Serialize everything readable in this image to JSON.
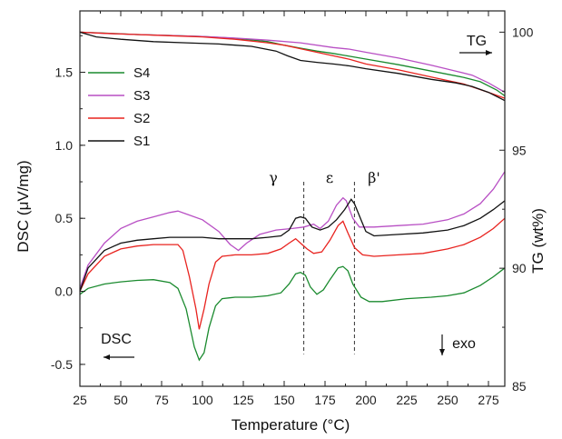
{
  "chart_data": {
    "type": "line",
    "xlabel": "Temperature (°C)",
    "ylabel_left": "DSC (μV/mg)",
    "ylabel_right": "TG (wt%)",
    "xlim": [
      25,
      285
    ],
    "ylim_left": [
      -0.65,
      1.92
    ],
    "ylim_right": [
      85,
      100.9
    ],
    "x_ticks": [
      25,
      50,
      75,
      100,
      125,
      150,
      175,
      200,
      225,
      250,
      275
    ],
    "y_left_ticks": [
      -0.5,
      0.0,
      0.5,
      1.0,
      1.5
    ],
    "y_left_tick_labels": [
      "-0.5",
      "0.0",
      "0.5",
      "1.0",
      "1.5"
    ],
    "y_right_ticks": [
      85,
      90,
      95,
      100
    ],
    "legend": {
      "placement": "top-left",
      "entries": [
        "S4",
        "S3",
        "S2",
        "S1"
      ]
    },
    "colors": {
      "S4": "#1a8a2e",
      "S3": "#b84fc4",
      "S2": "#e8231f",
      "S1": "#111111"
    },
    "annotations": {
      "tg_label": "TG",
      "dsc_label": "DSC",
      "exo_label": "exo",
      "gamma": "γ",
      "epsilon": "ε",
      "beta": "β'"
    },
    "vlines_x": [
      162,
      193
    ],
    "dsc_series": [
      {
        "name": "S4",
        "points": [
          [
            25,
            -0.02
          ],
          [
            30,
            0.02
          ],
          [
            40,
            0.05
          ],
          [
            50,
            0.065
          ],
          [
            60,
            0.075
          ],
          [
            70,
            0.08
          ],
          [
            80,
            0.06
          ],
          [
            85,
            0.02
          ],
          [
            90,
            -0.12
          ],
          [
            95,
            -0.38
          ],
          [
            98,
            -0.47
          ],
          [
            101,
            -0.42
          ],
          [
            104,
            -0.25
          ],
          [
            108,
            -0.1
          ],
          [
            112,
            -0.05
          ],
          [
            120,
            -0.04
          ],
          [
            130,
            -0.04
          ],
          [
            140,
            -0.03
          ],
          [
            148,
            -0.01
          ],
          [
            153,
            0.05
          ],
          [
            157,
            0.12
          ],
          [
            160,
            0.13
          ],
          [
            163,
            0.11
          ],
          [
            166,
            0.03
          ],
          [
            170,
            -0.02
          ],
          [
            174,
            0.01
          ],
          [
            178,
            0.08
          ],
          [
            183,
            0.16
          ],
          [
            186,
            0.17
          ],
          [
            189,
            0.14
          ],
          [
            192,
            0.05
          ],
          [
            197,
            -0.04
          ],
          [
            202,
            -0.07
          ],
          [
            210,
            -0.07
          ],
          [
            225,
            -0.05
          ],
          [
            240,
            -0.04
          ],
          [
            250,
            -0.03
          ],
          [
            260,
            -0.01
          ],
          [
            270,
            0.04
          ],
          [
            278,
            0.1
          ],
          [
            285,
            0.16
          ]
        ]
      },
      {
        "name": "S3",
        "points": [
          [
            25,
            0.02
          ],
          [
            30,
            0.18
          ],
          [
            40,
            0.33
          ],
          [
            50,
            0.43
          ],
          [
            60,
            0.48
          ],
          [
            70,
            0.51
          ],
          [
            80,
            0.54
          ],
          [
            85,
            0.55
          ],
          [
            90,
            0.53
          ],
          [
            100,
            0.49
          ],
          [
            110,
            0.41
          ],
          [
            117,
            0.32
          ],
          [
            122,
            0.28
          ],
          [
            127,
            0.33
          ],
          [
            135,
            0.39
          ],
          [
            145,
            0.42
          ],
          [
            155,
            0.43
          ],
          [
            162,
            0.44
          ],
          [
            168,
            0.46
          ],
          [
            172,
            0.43
          ],
          [
            177,
            0.48
          ],
          [
            182,
            0.59
          ],
          [
            186,
            0.64
          ],
          [
            188,
            0.62
          ],
          [
            192,
            0.5
          ],
          [
            196,
            0.44
          ],
          [
            205,
            0.44
          ],
          [
            220,
            0.45
          ],
          [
            235,
            0.46
          ],
          [
            250,
            0.49
          ],
          [
            260,
            0.53
          ],
          [
            270,
            0.6
          ],
          [
            278,
            0.7
          ],
          [
            285,
            0.82
          ]
        ]
      },
      {
        "name": "S2",
        "points": [
          [
            25,
            0.0
          ],
          [
            30,
            0.12
          ],
          [
            40,
            0.24
          ],
          [
            50,
            0.29
          ],
          [
            60,
            0.31
          ],
          [
            70,
            0.32
          ],
          [
            80,
            0.32
          ],
          [
            85,
            0.32
          ],
          [
            88,
            0.28
          ],
          [
            92,
            0.1
          ],
          [
            96,
            -0.12
          ],
          [
            98,
            -0.26
          ],
          [
            101,
            -0.12
          ],
          [
            104,
            0.05
          ],
          [
            108,
            0.2
          ],
          [
            112,
            0.24
          ],
          [
            120,
            0.25
          ],
          [
            130,
            0.25
          ],
          [
            140,
            0.26
          ],
          [
            148,
            0.29
          ],
          [
            153,
            0.33
          ],
          [
            157,
            0.36
          ],
          [
            160,
            0.33
          ],
          [
            164,
            0.29
          ],
          [
            168,
            0.26
          ],
          [
            173,
            0.27
          ],
          [
            178,
            0.35
          ],
          [
            183,
            0.45
          ],
          [
            186,
            0.48
          ],
          [
            189,
            0.4
          ],
          [
            193,
            0.3
          ],
          [
            198,
            0.25
          ],
          [
            205,
            0.24
          ],
          [
            220,
            0.25
          ],
          [
            235,
            0.26
          ],
          [
            250,
            0.29
          ],
          [
            260,
            0.32
          ],
          [
            270,
            0.37
          ],
          [
            278,
            0.43
          ],
          [
            285,
            0.5
          ]
        ]
      },
      {
        "name": "S1",
        "points": [
          [
            25,
            0.0
          ],
          [
            30,
            0.16
          ],
          [
            40,
            0.28
          ],
          [
            50,
            0.33
          ],
          [
            60,
            0.35
          ],
          [
            70,
            0.36
          ],
          [
            80,
            0.37
          ],
          [
            90,
            0.37
          ],
          [
            100,
            0.37
          ],
          [
            110,
            0.36
          ],
          [
            120,
            0.36
          ],
          [
            130,
            0.36
          ],
          [
            140,
            0.37
          ],
          [
            148,
            0.38
          ],
          [
            153,
            0.42
          ],
          [
            157,
            0.5
          ],
          [
            160,
            0.51
          ],
          [
            163,
            0.5
          ],
          [
            167,
            0.44
          ],
          [
            172,
            0.42
          ],
          [
            177,
            0.44
          ],
          [
            182,
            0.49
          ],
          [
            187,
            0.56
          ],
          [
            191,
            0.63
          ],
          [
            193,
            0.6
          ],
          [
            197,
            0.49
          ],
          [
            200,
            0.41
          ],
          [
            205,
            0.38
          ],
          [
            220,
            0.39
          ],
          [
            235,
            0.4
          ],
          [
            250,
            0.42
          ],
          [
            260,
            0.45
          ],
          [
            270,
            0.5
          ],
          [
            278,
            0.56
          ],
          [
            285,
            0.62
          ]
        ]
      }
    ],
    "tg_series": [
      {
        "name": "S4",
        "points": [
          [
            25,
            100.0
          ],
          [
            40,
            99.96
          ],
          [
            60,
            99.9
          ],
          [
            80,
            99.86
          ],
          [
            100,
            99.82
          ],
          [
            120,
            99.74
          ],
          [
            140,
            99.6
          ],
          [
            150,
            99.45
          ],
          [
            160,
            99.32
          ],
          [
            170,
            99.2
          ],
          [
            180,
            99.1
          ],
          [
            190,
            98.98
          ],
          [
            200,
            98.86
          ],
          [
            220,
            98.62
          ],
          [
            240,
            98.35
          ],
          [
            260,
            98.08
          ],
          [
            270,
            97.9
          ],
          [
            280,
            97.55
          ],
          [
            285,
            97.3
          ]
        ]
      },
      {
        "name": "S3",
        "points": [
          [
            25,
            100.0
          ],
          [
            40,
            99.95
          ],
          [
            60,
            99.9
          ],
          [
            80,
            99.86
          ],
          [
            100,
            99.82
          ],
          [
            120,
            99.75
          ],
          [
            140,
            99.66
          ],
          [
            160,
            99.55
          ],
          [
            180,
            99.35
          ],
          [
            190,
            99.28
          ],
          [
            200,
            99.15
          ],
          [
            220,
            98.9
          ],
          [
            240,
            98.6
          ],
          [
            255,
            98.35
          ],
          [
            265,
            98.18
          ],
          [
            275,
            97.85
          ],
          [
            285,
            97.45
          ]
        ]
      },
      {
        "name": "S2",
        "points": [
          [
            25,
            100.0
          ],
          [
            40,
            99.95
          ],
          [
            60,
            99.9
          ],
          [
            80,
            99.85
          ],
          [
            100,
            99.8
          ],
          [
            120,
            99.7
          ],
          [
            140,
            99.55
          ],
          [
            150,
            99.45
          ],
          [
            160,
            99.3
          ],
          [
            170,
            99.15
          ],
          [
            180,
            99.0
          ],
          [
            190,
            98.85
          ],
          [
            200,
            98.65
          ],
          [
            220,
            98.4
          ],
          [
            240,
            98.1
          ],
          [
            260,
            97.8
          ],
          [
            275,
            97.45
          ],
          [
            285,
            97.2
          ]
        ]
      },
      {
        "name": "S1",
        "points": [
          [
            25,
            100.0
          ],
          [
            35,
            99.8
          ],
          [
            50,
            99.7
          ],
          [
            70,
            99.6
          ],
          [
            90,
            99.55
          ],
          [
            110,
            99.5
          ],
          [
            130,
            99.4
          ],
          [
            145,
            99.2
          ],
          [
            152,
            99.0
          ],
          [
            160,
            98.8
          ],
          [
            170,
            98.72
          ],
          [
            180,
            98.65
          ],
          [
            190,
            98.57
          ],
          [
            200,
            98.45
          ],
          [
            220,
            98.25
          ],
          [
            240,
            98.0
          ],
          [
            255,
            97.85
          ],
          [
            265,
            97.7
          ],
          [
            275,
            97.45
          ],
          [
            285,
            97.1
          ]
        ]
      }
    ]
  }
}
